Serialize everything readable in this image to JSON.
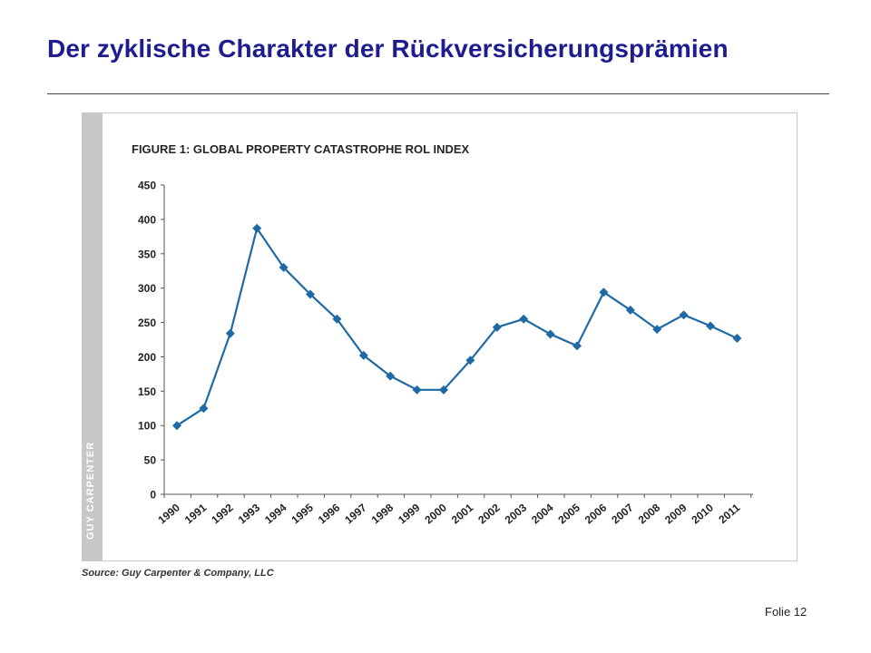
{
  "slide": {
    "title": "Der zyklische Charakter der Rückversicherungsprämien",
    "footer": "Folie 12"
  },
  "figure": {
    "side_label": "GUY CARPENTER",
    "title": "FIGURE 1: GLOBAL PROPERTY CATASTROPHE ROL INDEX",
    "source": "Source: Guy Carpenter & Company, LLC"
  },
  "colors": {
    "title": "#1d1d8f",
    "series": "#1f6aa5",
    "side_band": "#c7c7c7"
  },
  "chart_data": {
    "type": "line",
    "title": "FIGURE 1: GLOBAL PROPERTY CATASTROPHE ROL INDEX",
    "xlabel": "",
    "ylabel": "",
    "x": [
      "1990",
      "1991",
      "1992",
      "1993",
      "1994",
      "1995",
      "1996",
      "1997",
      "1998",
      "1999",
      "2000",
      "2001",
      "2002",
      "2003",
      "2004",
      "2005",
      "2006",
      "2007",
      "2008",
      "2009",
      "2010",
      "2011"
    ],
    "series": [
      {
        "values": [
          100,
          125,
          234,
          387,
          330,
          291,
          255,
          202,
          172,
          152,
          152,
          195,
          243,
          255,
          233,
          216,
          294,
          268,
          240,
          261,
          245,
          227
        ]
      }
    ],
    "yticks": [
      0,
      50,
      100,
      150,
      200,
      250,
      300,
      350,
      400,
      450
    ],
    "ylim": [
      0,
      450
    ],
    "grid": false,
    "legend": "none",
    "marker": "diamond"
  }
}
